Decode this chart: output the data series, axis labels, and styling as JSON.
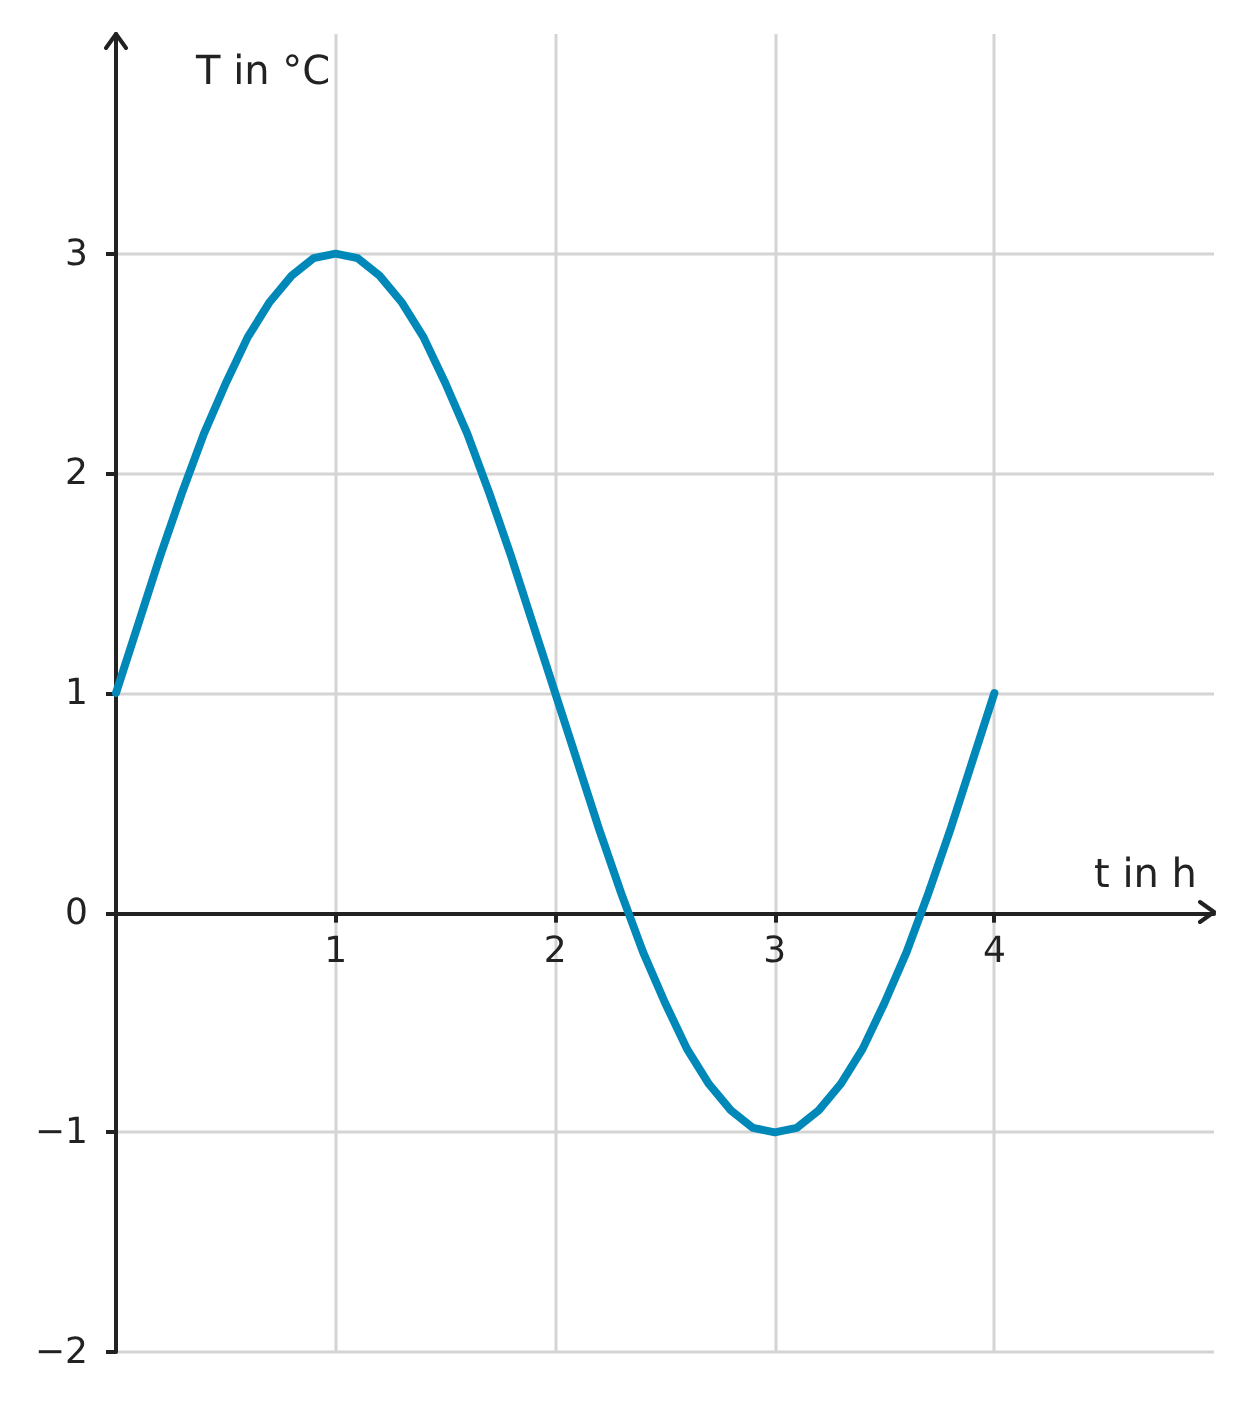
{
  "chart_data": {
    "type": "line",
    "xlabel": "t in h",
    "ylabel": "T in °C",
    "x": [
      0,
      0.1,
      0.2,
      0.3,
      0.4,
      0.5,
      0.6,
      0.7,
      0.8,
      0.9,
      1,
      1.1,
      1.2,
      1.3,
      1.4,
      1.5,
      1.6,
      1.7,
      1.8,
      1.9,
      2,
      2.1,
      2.2,
      2.3,
      2.4,
      2.5,
      2.6,
      2.7,
      2.8,
      2.9,
      3,
      3.1,
      3.2,
      3.3,
      3.4,
      3.5,
      3.6,
      3.7,
      3.8,
      3.9,
      4
    ],
    "series": [
      {
        "color": "#0088b9",
        "values": [
          1,
          1.31,
          1.62,
          1.91,
          2.18,
          2.41,
          2.62,
          2.78,
          2.9,
          2.98,
          3,
          2.98,
          2.9,
          2.78,
          2.62,
          2.41,
          2.18,
          1.91,
          1.62,
          1.31,
          1,
          0.69,
          0.38,
          0.09,
          -0.18,
          -0.41,
          -0.62,
          -0.78,
          -0.9,
          -0.98,
          -1,
          -0.98,
          -0.9,
          -0.78,
          -0.62,
          -0.41,
          -0.18,
          0.09,
          0.38,
          0.69,
          1
        ]
      }
    ],
    "xlim": [
      0,
      5
    ],
    "xticks": [
      1,
      2,
      3,
      4
    ],
    "ylim": [
      -2,
      4
    ],
    "yticks": [
      -2,
      -1,
      0,
      1,
      2,
      3
    ],
    "grid": true,
    "marker": "none",
    "line_style": "solid"
  }
}
